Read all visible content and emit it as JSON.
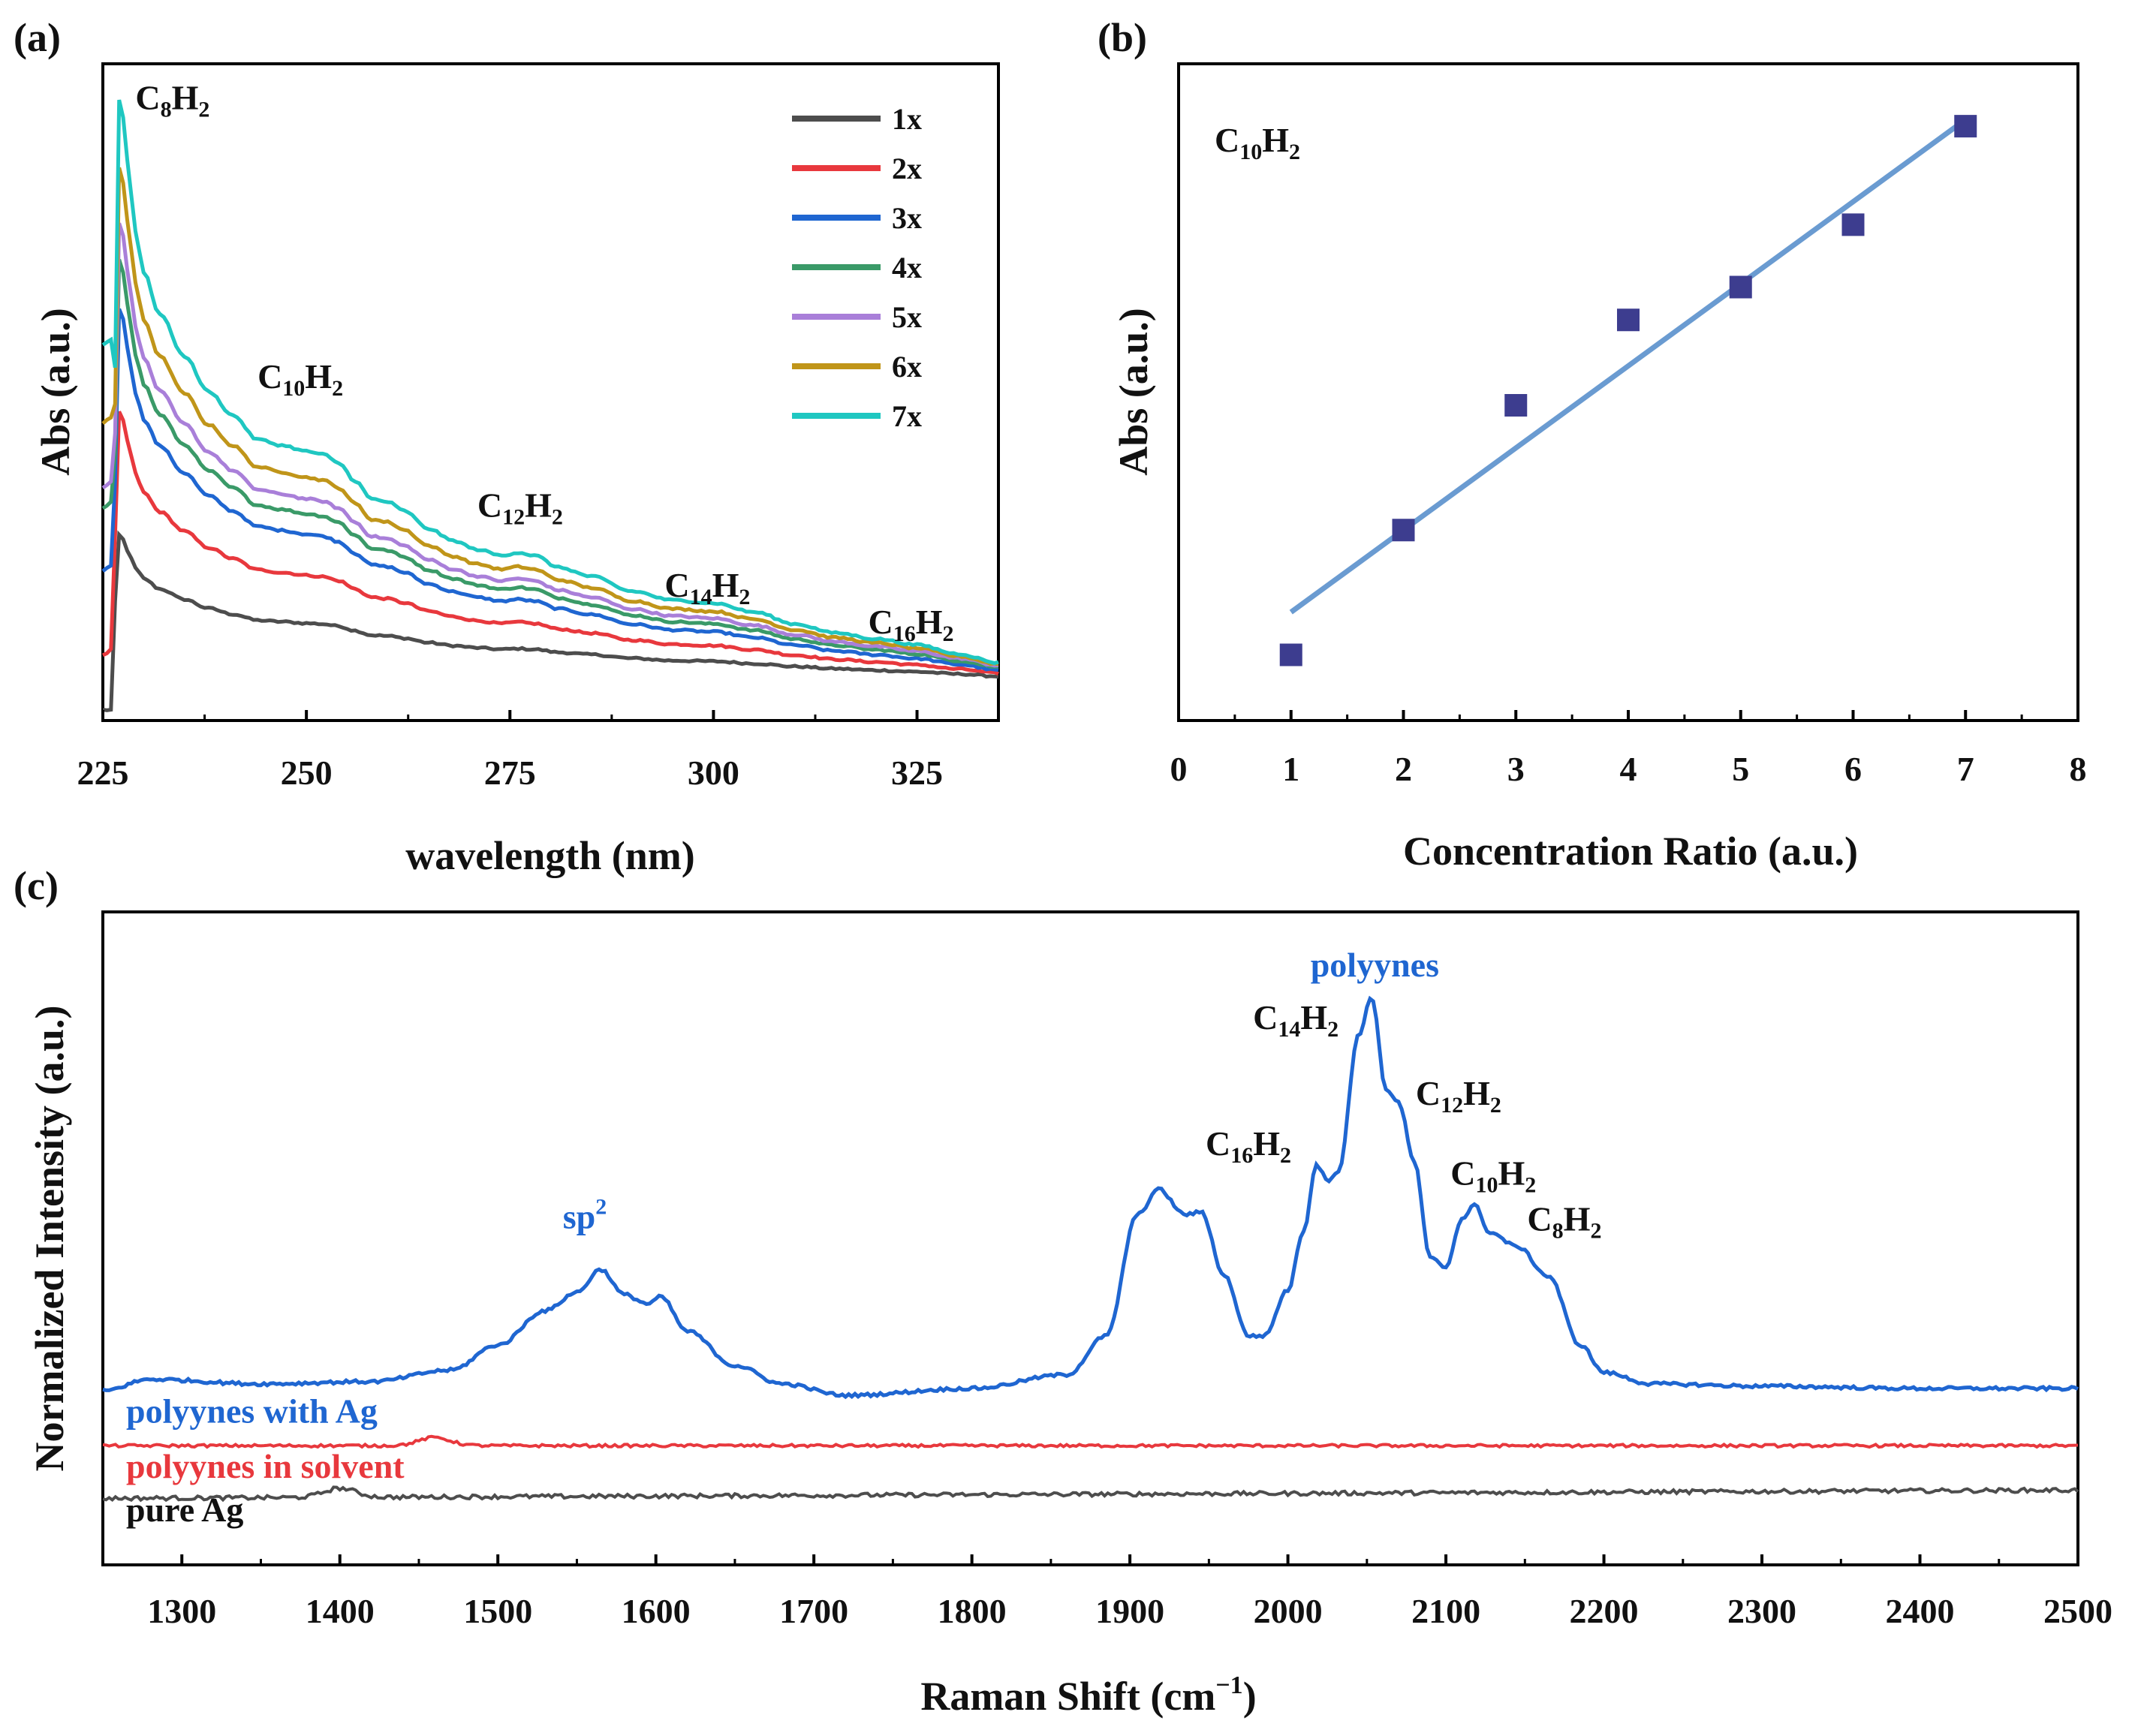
{
  "chart_data": [
    {
      "panel": "(a)",
      "type": "line",
      "xlabel": "wavelength (nm)",
      "ylabel": "Abs (a.u.)",
      "xlim": [
        225,
        335
      ],
      "ylim": [
        0,
        1
      ],
      "xticks": [
        "225",
        "250",
        "275",
        "300",
        "325"
      ],
      "x": [
        225,
        226,
        226.5,
        227,
        227.5,
        228,
        229,
        230,
        232,
        235,
        238,
        241,
        244,
        247,
        250,
        252,
        254,
        256,
        258,
        260,
        262,
        265,
        268,
        271,
        274,
        276,
        278,
        281,
        285,
        290,
        295,
        300,
        305,
        310,
        315,
        320,
        325,
        330,
        335
      ],
      "base_shape": [
        0.3,
        0.32,
        0.55,
        1.0,
        0.97,
        0.9,
        0.78,
        0.71,
        0.64,
        0.57,
        0.51,
        0.47,
        0.43,
        0.42,
        0.41,
        0.405,
        0.39,
        0.36,
        0.33,
        0.325,
        0.31,
        0.28,
        0.26,
        0.245,
        0.235,
        0.24,
        0.235,
        0.215,
        0.2,
        0.175,
        0.16,
        0.155,
        0.14,
        0.12,
        0.105,
        0.095,
        0.085,
        0.07,
        0.055
      ],
      "series": [
        {
          "name": "1x",
          "color": "#4d4d4d",
          "peak": 0.29,
          "tail": 0.06,
          "low": 0.0
        },
        {
          "name": "2x",
          "color": "#e8383d",
          "peak": 0.49,
          "tail": 0.065,
          "low": 0.19
        },
        {
          "name": "3x",
          "color": "#1f66d1",
          "peak": 0.66,
          "tail": 0.07,
          "low": 0.35
        },
        {
          "name": "4x",
          "color": "#3a9a68",
          "peak": 0.74,
          "tail": 0.075,
          "low": 0.45
        },
        {
          "name": "5x",
          "color": "#a97fd9",
          "peak": 0.8,
          "tail": 0.078,
          "low": 0.46
        },
        {
          "name": "6x",
          "color": "#c09519",
          "peak": 0.89,
          "tail": 0.08,
          "low": 0.53
        },
        {
          "name": "7x",
          "color": "#1fc7c1",
          "peak": 1.0,
          "tail": 0.082,
          "low": 0.6
        }
      ],
      "annotations": [
        {
          "base": "C",
          "sub1": "8",
          "mid": "H",
          "sub2": "2",
          "x": 229,
          "y": 0.985
        },
        {
          "base": "C",
          "sub1": "10",
          "mid": "H",
          "sub2": "2",
          "x": 244,
          "y": 0.53
        },
        {
          "base": "C",
          "sub1": "12",
          "mid": "H",
          "sub2": "2",
          "x": 271,
          "y": 0.32
        },
        {
          "base": "C",
          "sub1": "14",
          "mid": "H",
          "sub2": "2",
          "x": 294,
          "y": 0.19
        },
        {
          "base": "C",
          "sub1": "16",
          "mid": "H",
          "sub2": "2",
          "x": 319,
          "y": 0.13
        }
      ]
    },
    {
      "panel": "(b)",
      "type": "scatter",
      "xlabel": "Concentration Ratio (a.u.)",
      "ylabel": "Abs (a.u.)",
      "label": {
        "base": "C",
        "sub1": "10",
        "mid": "H",
        "sub2": "2"
      },
      "xlim": [
        0,
        8
      ],
      "ylim": [
        0,
        1
      ],
      "xticks": [
        "0",
        "1",
        "2",
        "3",
        "4",
        "5",
        "6",
        "7",
        "8"
      ],
      "x": [
        1,
        2,
        3,
        4,
        5,
        6,
        7
      ],
      "y": [
        0.1,
        0.29,
        0.48,
        0.61,
        0.66,
        0.755,
        0.905
      ],
      "fit": {
        "x": [
          1,
          7
        ],
        "y": [
          0.165,
          0.915
        ],
        "color": "#6a9bd1"
      },
      "marker_color": "#3d3d8f"
    },
    {
      "panel": "(c)",
      "type": "line",
      "xlabel": "Raman Shift (cm",
      "xlabel_sup": "−1",
      "xlabel_end": ")",
      "ylabel": "Normalized Intensity (a.u.)",
      "xlim": [
        1250,
        2500
      ],
      "ylim": [
        0,
        1
      ],
      "xticks": [
        "1300",
        "1400",
        "1500",
        "1600",
        "1700",
        "1800",
        "1900",
        "2000",
        "2100",
        "2200",
        "2300",
        "2400",
        "2500"
      ],
      "series": [
        {
          "name": "polyynes with Ag",
          "color": "#1f66d1"
        },
        {
          "name": "polyynes in solvent",
          "color": "#e8383d"
        },
        {
          "name": "pure Ag",
          "color": "#4d4d4d"
        }
      ],
      "blue_x": [
        1250,
        1280,
        1350,
        1420,
        1470,
        1500,
        1530,
        1550,
        1565,
        1580,
        1595,
        1603,
        1620,
        1650,
        1680,
        1720,
        1800,
        1860,
        1885,
        1905,
        1918,
        1935,
        1945,
        1960,
        1975,
        1985,
        2000,
        2010,
        2018,
        2025,
        2032,
        2045,
        2053,
        2062,
        2070,
        2080,
        2090,
        2100,
        2110,
        2118,
        2128,
        2145,
        2165,
        2185,
        2200,
        2230,
        2300,
        2400,
        2500
      ],
      "blue_y": [
        0.0,
        0.025,
        0.015,
        0.02,
        0.045,
        0.1,
        0.175,
        0.215,
        0.265,
        0.21,
        0.19,
        0.205,
        0.13,
        0.055,
        0.015,
        -0.01,
        0.005,
        0.035,
        0.12,
        0.385,
        0.44,
        0.385,
        0.39,
        0.25,
        0.12,
        0.12,
        0.22,
        0.35,
        0.495,
        0.46,
        0.48,
        0.78,
        0.86,
        0.66,
        0.63,
        0.5,
        0.29,
        0.27,
        0.375,
        0.405,
        0.345,
        0.315,
        0.25,
        0.1,
        0.04,
        0.015,
        0.01,
        0.005,
        0.005
      ],
      "red_level": -0.12,
      "red_bumps": [
        {
          "x": 1460,
          "h": 0.018
        }
      ],
      "black_level": -0.235,
      "black_bumps": [
        {
          "x": 1400,
          "h": 0.02
        }
      ],
      "annotations": [
        {
          "base": "polyynes",
          "color": "#1f66d1",
          "x": 2055,
          "y": 0.905
        },
        {
          "base": "sp",
          "sup": "2",
          "color": "#1f66d1",
          "x": 1555,
          "y": 0.355
        },
        {
          "base": "C",
          "sub1": "14",
          "mid": "H",
          "sub2": "2",
          "x": 2005,
          "y": 0.79
        },
        {
          "base": "C",
          "sub1": "12",
          "mid": "H",
          "sub2": "2",
          "x": 2108,
          "y": 0.625
        },
        {
          "base": "C",
          "sub1": "16",
          "mid": "H",
          "sub2": "2",
          "x": 1975,
          "y": 0.515
        },
        {
          "base": "C",
          "sub1": "10",
          "mid": "H",
          "sub2": "2",
          "x": 2130,
          "y": 0.45
        },
        {
          "base": "C",
          "sub1": "8",
          "mid": "H",
          "sub2": "2",
          "x": 2175,
          "y": 0.35
        }
      ],
      "legend_labels": [
        {
          "text": "polyynes with Ag",
          "color": "#1f66d1",
          "y": -0.07
        },
        {
          "text": "polyynes in solvent",
          "color": "#e8383d",
          "y": -0.19
        },
        {
          "text": "pure Ag",
          "color": "#111111",
          "y": -0.285
        }
      ]
    }
  ]
}
